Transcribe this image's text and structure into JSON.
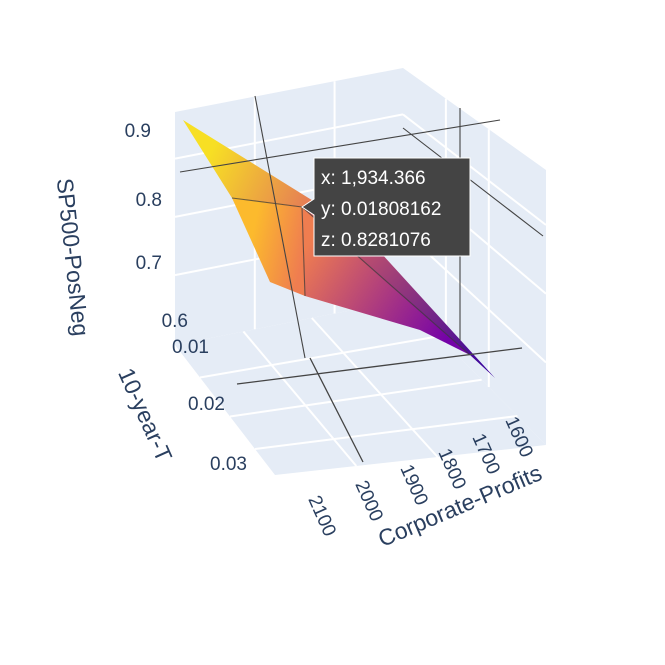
{
  "chart_data": {
    "type": "surface",
    "colorscale": "plasma",
    "colors": {
      "pane": "#e5ecf6",
      "grid": "#ffffff",
      "axis_text": "#2a3f5f",
      "hover_bg": "#444444",
      "hover_text": "#ffffff"
    },
    "axes": {
      "x": {
        "title": "Corporate-Profits",
        "ticks": [
          "1600",
          "1700",
          "1800",
          "1900",
          "2000",
          "2100"
        ]
      },
      "y": {
        "title": "10-year-T",
        "ticks": [
          "0.01",
          "0.02",
          "0.03"
        ]
      },
      "z": {
        "title": "SP500-PosNeg",
        "ticks": [
          "0.6",
          "0.7",
          "0.8",
          "0.9"
        ]
      }
    },
    "x": [
      1580,
      1934.366,
      2110
    ],
    "y": [
      0.005,
      0.01808162,
      0.035
    ],
    "z": [
      [
        0.57,
        0.71,
        0.9
      ],
      [
        0.63,
        0.8281076,
        0.86
      ],
      [
        0.66,
        0.76,
        0.84
      ]
    ],
    "hover": {
      "x_text": "x: 1,934.366",
      "y_text": "y: 0.01808162",
      "z_text": "z: 0.8281076"
    }
  }
}
